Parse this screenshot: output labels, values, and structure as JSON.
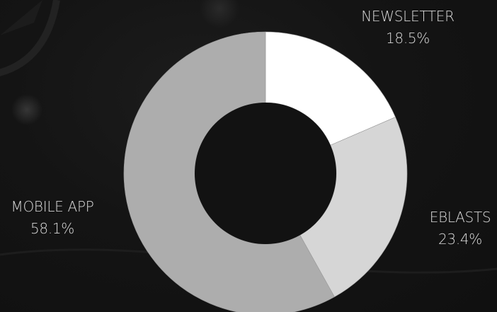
{
  "chart_data": {
    "type": "pie",
    "title": "",
    "donut": true,
    "legend": "none",
    "categories": [
      "NEWSLETTER",
      "EBLASTS",
      "MOBILE APP"
    ],
    "values": [
      18.5,
      23.4,
      58.1
    ],
    "value_labels": [
      "18.5%",
      "23.4%",
      "58.1%"
    ],
    "colors": [
      "#ffffff",
      "#d6d6d6",
      "#adadad"
    ],
    "background": "#121212"
  }
}
